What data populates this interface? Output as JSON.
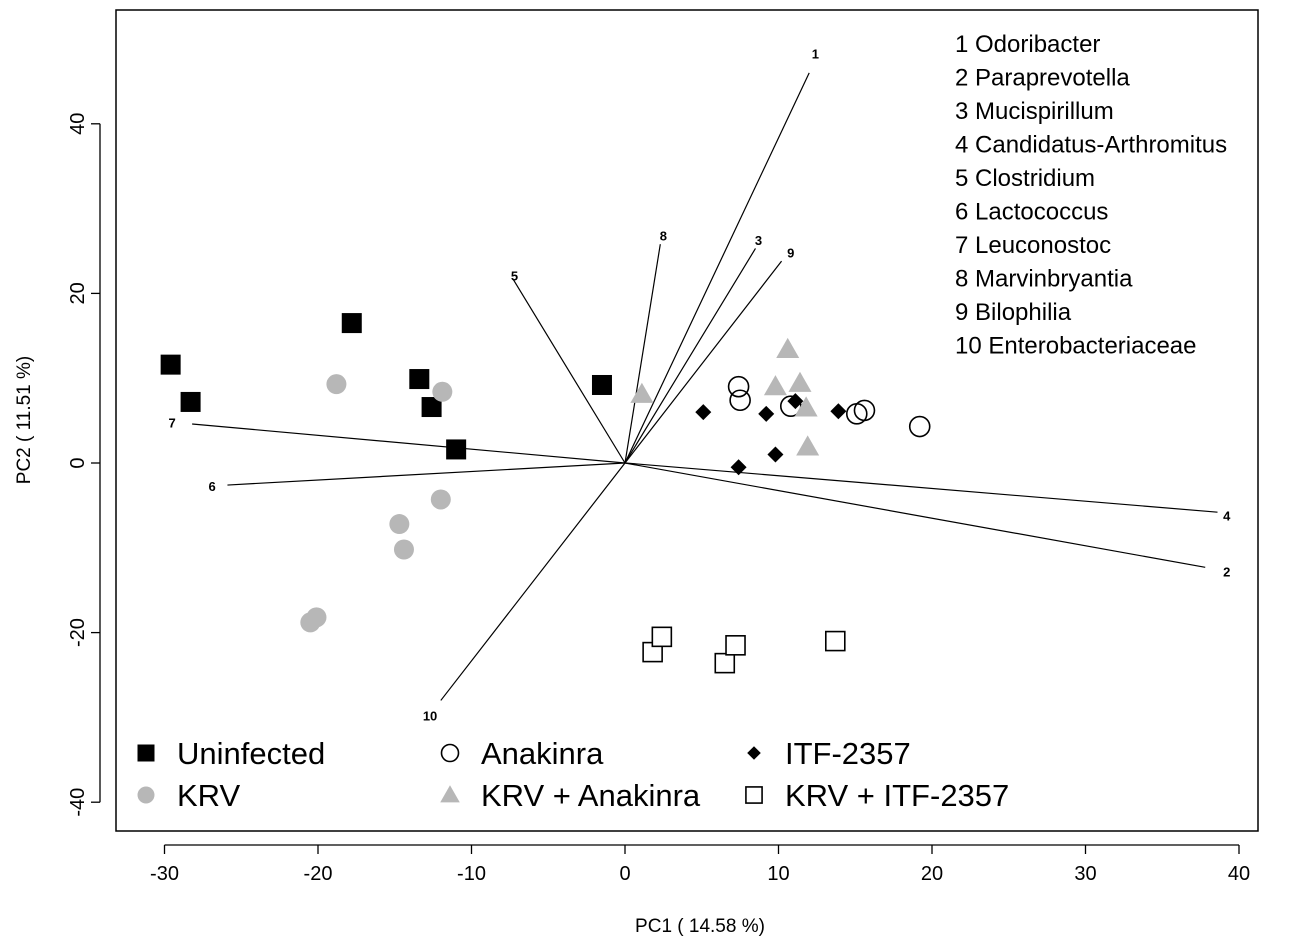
{
  "chart_data": {
    "type": "scatter",
    "xlabel": "PC1 ( 14.58 %)",
    "ylabel": "PC2 ( 11.51 %)",
    "xlim": [
      -33,
      42
    ],
    "ylim": [
      -43,
      53.5
    ],
    "xticks": [
      -30,
      -20,
      -10,
      0,
      10,
      20,
      30,
      40
    ],
    "yticks": [
      -40,
      -20,
      0,
      20,
      40
    ],
    "grid": false,
    "legend_position": "bottom-left",
    "series": [
      {
        "name": "Uninfected",
        "marker": "filled-square",
        "color": "#000000",
        "points": [
          [
            -29.6,
            11.6
          ],
          [
            -28.3,
            7.2
          ],
          [
            -17.8,
            16.5
          ],
          [
            -13.4,
            9.9
          ],
          [
            -12.6,
            6.6
          ],
          [
            -11.0,
            1.6
          ],
          [
            -1.5,
            9.2
          ]
        ]
      },
      {
        "name": "KRV",
        "marker": "filled-circle",
        "color": "#b7b7b7",
        "points": [
          [
            -18.8,
            9.3
          ],
          [
            -11.9,
            8.4
          ],
          [
            -14.7,
            -7.2
          ],
          [
            -14.4,
            -10.2
          ],
          [
            -12.0,
            -4.3
          ],
          [
            -20.5,
            -18.8
          ],
          [
            -20.1,
            -18.2
          ]
        ]
      },
      {
        "name": "Anakinra",
        "marker": "open-circle",
        "color": "#000000",
        "points": [
          [
            7.4,
            9.0
          ],
          [
            7.5,
            7.4
          ],
          [
            10.8,
            6.7
          ],
          [
            15.1,
            5.8
          ],
          [
            15.6,
            6.2
          ],
          [
            19.2,
            4.3
          ]
        ]
      },
      {
        "name": "KRV + Anakinra",
        "marker": "filled-triangle",
        "color": "#b7b7b7",
        "points": [
          [
            1.1,
            8.1
          ],
          [
            10.6,
            13.4
          ],
          [
            9.8,
            9.0
          ],
          [
            11.4,
            9.4
          ],
          [
            11.8,
            6.5
          ],
          [
            11.9,
            1.9
          ]
        ]
      },
      {
        "name": "ITF-2357",
        "marker": "filled-diamond",
        "color": "#000000",
        "points": [
          [
            5.1,
            6.0
          ],
          [
            9.2,
            5.8
          ],
          [
            11.1,
            7.3
          ],
          [
            13.9,
            6.1
          ],
          [
            7.4,
            -0.5
          ],
          [
            9.8,
            1.0
          ]
        ]
      },
      {
        "name": "KRV + ITF-2357",
        "marker": "open-square",
        "color": "#000000",
        "points": [
          [
            1.8,
            -22.3
          ],
          [
            2.4,
            -20.5
          ],
          [
            6.5,
            -23.6
          ],
          [
            7.2,
            -21.5
          ],
          [
            13.7,
            -21.0
          ]
        ]
      }
    ],
    "vectors": [
      {
        "label": "1",
        "end": [
          12.0,
          46.0
        ],
        "label_at": [
          12.4,
          48.3
        ]
      },
      {
        "label": "2",
        "end": [
          37.8,
          -12.3
        ],
        "label_at": [
          39.2,
          -12.8
        ]
      },
      {
        "label": "3",
        "end": [
          8.5,
          25.3
        ],
        "label_at": [
          8.7,
          26.3
        ]
      },
      {
        "label": "4",
        "end": [
          38.6,
          -5.8
        ],
        "label_at": [
          39.2,
          -6.2
        ]
      },
      {
        "label": "5",
        "end": [
          -7.3,
          21.7
        ],
        "label_at": [
          -7.2,
          22.1
        ]
      },
      {
        "label": "6",
        "end": [
          -25.9,
          -2.6
        ],
        "label_at": [
          -26.9,
          -2.7
        ]
      },
      {
        "label": "7",
        "end": [
          -28.2,
          4.6
        ],
        "label_at": [
          -29.5,
          4.8
        ]
      },
      {
        "label": "8",
        "end": [
          2.3,
          25.8
        ],
        "label_at": [
          2.5,
          26.8
        ]
      },
      {
        "label": "9",
        "end": [
          10.2,
          23.8
        ],
        "label_at": [
          10.8,
          24.8
        ]
      },
      {
        "label": "10",
        "end": [
          -12.0,
          -28.0
        ],
        "label_at": [
          -12.7,
          -29.8
        ]
      }
    ],
    "genus_legend": [
      "1 Odoribacter",
      "2 Paraprevotella",
      "3 Mucispirillum",
      "4 Candidatus-Arthromitus",
      "5 Clostridium",
      "6 Lactococcus",
      "7 Leuconostoc",
      "8 Marvinbryantia",
      "9 Bilophilia",
      "10 Enterobacteriaceae"
    ]
  }
}
